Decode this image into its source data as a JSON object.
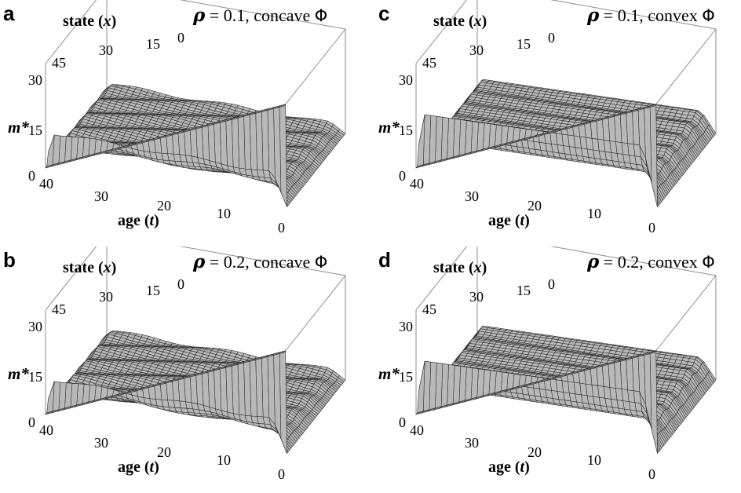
{
  "chart_data": [
    {
      "type": "surface",
      "panel_label": "a",
      "title_parts": [
        "ρ",
        " = 0.1, concave ",
        "Φ"
      ],
      "surface_variant": "concave",
      "xlabel_parts": [
        "age (",
        "t",
        ")"
      ],
      "ylabel_parts": [
        "state (",
        "x",
        ")"
      ],
      "zlabel": "m*",
      "age_ticks": [
        "40",
        "30",
        "20",
        "10",
        "0"
      ],
      "state_ticks": [
        "45",
        "30",
        "15",
        "0"
      ],
      "z_ticks": [
        "0",
        "15",
        "30"
      ],
      "xlim": [
        40,
        0
      ],
      "ylim": [
        45,
        0
      ],
      "zlim": [
        0,
        30
      ]
    },
    {
      "type": "surface",
      "panel_label": "b",
      "title_parts": [
        "ρ",
        " = 0.2, concave ",
        "Φ"
      ],
      "surface_variant": "concave",
      "xlabel_parts": [
        "age (",
        "t",
        ")"
      ],
      "ylabel_parts": [
        "state (",
        "x",
        ")"
      ],
      "zlabel": "m*",
      "age_ticks": [
        "40",
        "30",
        "20",
        "10",
        "0"
      ],
      "state_ticks": [
        "45",
        "30",
        "15",
        "0"
      ],
      "z_ticks": [
        "0",
        "15",
        "30"
      ],
      "xlim": [
        40,
        0
      ],
      "ylim": [
        45,
        0
      ],
      "zlim": [
        0,
        30
      ]
    },
    {
      "type": "surface",
      "panel_label": "c",
      "title_parts": [
        "ρ",
        " = 0.1, convex ",
        "Φ"
      ],
      "surface_variant": "convex",
      "xlabel_parts": [
        "age (",
        "t",
        ")"
      ],
      "ylabel_parts": [
        "state (",
        "x",
        ")"
      ],
      "zlabel": "m*",
      "age_ticks": [
        "40",
        "30",
        "20",
        "10",
        "0"
      ],
      "state_ticks": [
        "45",
        "30",
        "15",
        "0"
      ],
      "z_ticks": [
        "0",
        "15",
        "30"
      ],
      "xlim": [
        40,
        0
      ],
      "ylim": [
        45,
        0
      ],
      "zlim": [
        0,
        30
      ]
    },
    {
      "type": "surface",
      "panel_label": "d",
      "title_parts": [
        "ρ",
        " = 0.2, convex ",
        "Φ"
      ],
      "surface_variant": "convex",
      "xlabel_parts": [
        "age (",
        "t",
        ")"
      ],
      "ylabel_parts": [
        "state (",
        "x",
        ")"
      ],
      "zlabel": "m*",
      "age_ticks": [
        "40",
        "30",
        "20",
        "10",
        "0"
      ],
      "state_ticks": [
        "45",
        "30",
        "15",
        "0"
      ],
      "z_ticks": [
        "0",
        "15",
        "30"
      ],
      "xlim": [
        40,
        0
      ],
      "ylim": [
        45,
        0
      ],
      "zlim": [
        0,
        30
      ]
    }
  ],
  "colors": {
    "surface": "#b8b8b8",
    "surface_dark": "#8a8a8a",
    "wall": "#7a7a7a",
    "mesh": "#2a2a2a",
    "box": "#8c8c8c"
  }
}
